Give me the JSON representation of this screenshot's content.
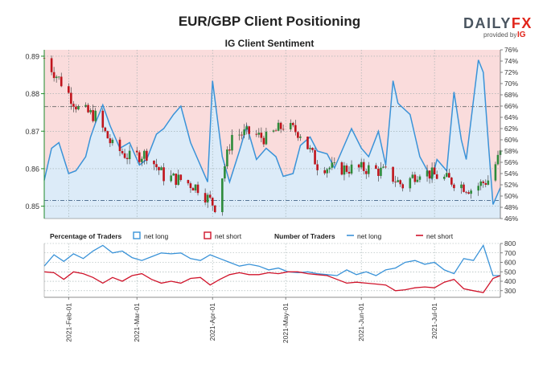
{
  "page_title": "EUR/GBP Client Positioning",
  "subtitle": "IG Client Sentiment",
  "brand": {
    "name": "DAILYFX",
    "name_dark": "DAILY",
    "name_red": "FX",
    "provided_by": "provided by",
    "ig": "IG",
    "colors": {
      "dark": "#4a5560",
      "red": "#e1251b"
    }
  },
  "colors": {
    "net_long": "#3a93d8",
    "net_short": "#d0142b",
    "net_long_fill": "#dcebf8",
    "net_short_fill": "#fadcdc",
    "up_candle": "#2e8b3a",
    "down_candle": "#c0141c",
    "left_axis": "#1e8a2a",
    "median_line": "#666666",
    "price_ref_line": "#446688"
  },
  "legend": {
    "pct_title": "Percentage of Traders",
    "count_title": "Number of Traders",
    "net_long": "net long",
    "net_short": "net short"
  },
  "chart_data": [
    {
      "type": "candlestick",
      "title": "EUR/GBP price",
      "ylim": [
        0.8467,
        0.8917
      ],
      "yticks": [
        "0.89",
        "0.88",
        "0.87",
        "0.86",
        "0.85"
      ],
      "ytick_values": [
        0.89,
        0.88,
        0.87,
        0.86,
        0.85
      ],
      "reference_line": 0.8515,
      "x_range": [
        "2021-01-22",
        "2021-07-28"
      ],
      "sampled_closes": [
        [
          "2021-01-22",
          0.8895
        ],
        [
          "2021-01-29",
          0.883
        ],
        [
          "2021-02-05",
          0.876
        ],
        [
          "2021-02-12",
          0.874
        ],
        [
          "2021-02-19",
          0.866
        ],
        [
          "2021-02-26",
          0.863
        ],
        [
          "2021-03-05",
          0.864
        ],
        [
          "2021-03-12",
          0.858
        ],
        [
          "2021-03-19",
          0.857
        ],
        [
          "2021-03-26",
          0.855
        ],
        [
          "2021-04-02",
          0.85
        ],
        [
          "2021-04-09",
          0.869
        ],
        [
          "2021-04-16",
          0.8695
        ],
        [
          "2021-04-23",
          0.868
        ],
        [
          "2021-04-30",
          0.8715
        ],
        [
          "2021-05-07",
          0.8695
        ],
        [
          "2021-05-14",
          0.861
        ],
        [
          "2021-05-21",
          0.86
        ],
        [
          "2021-05-28",
          0.86
        ],
        [
          "2021-06-04",
          0.86
        ],
        [
          "2021-06-11",
          0.859
        ],
        [
          "2021-06-18",
          0.8555
        ],
        [
          "2021-06-25",
          0.8595
        ],
        [
          "2021-07-02",
          0.858
        ],
        [
          "2021-07-09",
          0.8565
        ],
        [
          "2021-07-16",
          0.8545
        ],
        [
          "2021-07-23",
          0.857
        ],
        [
          "2021-07-28",
          0.864
        ]
      ]
    },
    {
      "type": "area",
      "title": "IG Client Sentiment",
      "ylabel": "Percentage of Traders",
      "ylim": [
        46,
        76
      ],
      "yticks": [
        "76%",
        "74%",
        "72%",
        "70%",
        "68%",
        "66%",
        "64%",
        "62%",
        "60%",
        "58%",
        "56%",
        "54%",
        "52%",
        "50%",
        "48%",
        "46%"
      ],
      "ytick_values": [
        76,
        74,
        72,
        70,
        68,
        66,
        64,
        62,
        60,
        58,
        56,
        54,
        52,
        50,
        48,
        46
      ],
      "median_line": 65.9,
      "series": [
        {
          "name": "net long",
          "points": [
            [
              "2021-01-22",
              52.8
            ],
            [
              "2021-01-25",
              58.5
            ],
            [
              "2021-01-28",
              59.5
            ],
            [
              "2021-02-01",
              54.0
            ],
            [
              "2021-02-04",
              54.5
            ],
            [
              "2021-02-08",
              57.0
            ],
            [
              "2021-02-10",
              60.5
            ],
            [
              "2021-02-12",
              63.0
            ],
            [
              "2021-02-15",
              66.2
            ],
            [
              "2021-02-18",
              62.5
            ],
            [
              "2021-02-22",
              58.5
            ],
            [
              "2021-02-26",
              59.5
            ],
            [
              "2021-03-02",
              55.5
            ],
            [
              "2021-03-05",
              56.5
            ],
            [
              "2021-03-09",
              61.0
            ],
            [
              "2021-03-12",
              62.0
            ],
            [
              "2021-03-16",
              64.5
            ],
            [
              "2021-03-19",
              66.0
            ],
            [
              "2021-03-23",
              59.5
            ],
            [
              "2021-03-26",
              56.5
            ],
            [
              "2021-03-30",
              52.5
            ],
            [
              "2021-04-01",
              70.5
            ],
            [
              "2021-04-05",
              57.0
            ],
            [
              "2021-04-08",
              52.5
            ],
            [
              "2021-04-12",
              58.0
            ],
            [
              "2021-04-15",
              62.5
            ],
            [
              "2021-04-19",
              56.5
            ],
            [
              "2021-04-23",
              58.5
            ],
            [
              "2021-04-27",
              57.0
            ],
            [
              "2021-04-30",
              53.5
            ],
            [
              "2021-05-04",
              54.0
            ],
            [
              "2021-05-07",
              59.0
            ],
            [
              "2021-05-11",
              60.5
            ],
            [
              "2021-05-14",
              58.0
            ],
            [
              "2021-05-18",
              57.5
            ],
            [
              "2021-05-21",
              55.0
            ],
            [
              "2021-05-25",
              59.0
            ],
            [
              "2021-05-28",
              62.0
            ],
            [
              "2021-06-01",
              58.5
            ],
            [
              "2021-06-04",
              57.0
            ],
            [
              "2021-06-08",
              61.5
            ],
            [
              "2021-06-11",
              55.5
            ],
            [
              "2021-06-14",
              70.5
            ],
            [
              "2021-06-16",
              66.5
            ],
            [
              "2021-06-21",
              64.5
            ],
            [
              "2021-06-25",
              57.0
            ],
            [
              "2021-06-30",
              53.0
            ],
            [
              "2021-07-02",
              56.5
            ],
            [
              "2021-07-06",
              54.5
            ],
            [
              "2021-07-09",
              68.5
            ],
            [
              "2021-07-12",
              60.0
            ],
            [
              "2021-07-14",
              56.5
            ],
            [
              "2021-07-19",
              74.2
            ],
            [
              "2021-07-21",
              72.0
            ],
            [
              "2021-07-23",
              60.0
            ],
            [
              "2021-07-25",
              48.5
            ],
            [
              "2021-07-28",
              51.5
            ]
          ]
        },
        {
          "name": "net short",
          "points_note": ""
        }
      ]
    },
    {
      "type": "line",
      "title": "Number of Traders",
      "ylim": [
        230,
        800
      ],
      "yticks": [
        "800",
        "700",
        "600",
        "500",
        "400",
        "300"
      ],
      "ytick_values": [
        800,
        700,
        600,
        500,
        400,
        300
      ],
      "xticks": [
        "2021-Feb-01",
        "2021-Mar-01",
        "2021-Apr-01",
        "2021-May-01",
        "2021-Jun-01",
        "2021-Jul-01"
      ],
      "xtick_dates": [
        "2021-02-01",
        "2021-03-01",
        "2021-04-01",
        "2021-05-01",
        "2021-06-01",
        "2021-07-01"
      ],
      "series": [
        {
          "name": "net long",
          "points": [
            [
              "2021-01-22",
              560
            ],
            [
              "2021-01-26",
              680
            ],
            [
              "2021-01-30",
              610
            ],
            [
              "2021-02-03",
              690
            ],
            [
              "2021-02-07",
              640
            ],
            [
              "2021-02-11",
              720
            ],
            [
              "2021-02-15",
              780
            ],
            [
              "2021-02-19",
              700
            ],
            [
              "2021-02-23",
              720
            ],
            [
              "2021-02-27",
              650
            ],
            [
              "2021-03-03",
              620
            ],
            [
              "2021-03-07",
              660
            ],
            [
              "2021-03-11",
              700
            ],
            [
              "2021-03-15",
              690
            ],
            [
              "2021-03-19",
              700
            ],
            [
              "2021-03-23",
              640
            ],
            [
              "2021-03-27",
              620
            ],
            [
              "2021-03-31",
              680
            ],
            [
              "2021-04-04",
              640
            ],
            [
              "2021-04-08",
              600
            ],
            [
              "2021-04-12",
              560
            ],
            [
              "2021-04-16",
              580
            ],
            [
              "2021-04-20",
              560
            ],
            [
              "2021-04-24",
              520
            ],
            [
              "2021-04-28",
              540
            ],
            [
              "2021-05-02",
              500
            ],
            [
              "2021-05-06",
              490
            ],
            [
              "2021-05-10",
              500
            ],
            [
              "2021-05-14",
              480
            ],
            [
              "2021-05-18",
              470
            ],
            [
              "2021-05-22",
              460
            ],
            [
              "2021-05-26",
              520
            ],
            [
              "2021-05-30",
              470
            ],
            [
              "2021-06-03",
              500
            ],
            [
              "2021-06-07",
              460
            ],
            [
              "2021-06-11",
              520
            ],
            [
              "2021-06-15",
              540
            ],
            [
              "2021-06-19",
              600
            ],
            [
              "2021-06-23",
              620
            ],
            [
              "2021-06-27",
              580
            ],
            [
              "2021-07-01",
              600
            ],
            [
              "2021-07-05",
              520
            ],
            [
              "2021-07-09",
              480
            ],
            [
              "2021-07-13",
              640
            ],
            [
              "2021-07-17",
              620
            ],
            [
              "2021-07-21",
              780
            ],
            [
              "2021-07-25",
              460
            ],
            [
              "2021-07-28",
              460
            ]
          ]
        },
        {
          "name": "net short",
          "points": [
            [
              "2021-01-22",
              500
            ],
            [
              "2021-01-26",
              490
            ],
            [
              "2021-01-30",
              420
            ],
            [
              "2021-02-03",
              500
            ],
            [
              "2021-02-07",
              480
            ],
            [
              "2021-02-11",
              440
            ],
            [
              "2021-02-15",
              380
            ],
            [
              "2021-02-19",
              440
            ],
            [
              "2021-02-23",
              400
            ],
            [
              "2021-02-27",
              460
            ],
            [
              "2021-03-03",
              480
            ],
            [
              "2021-03-07",
              420
            ],
            [
              "2021-03-11",
              380
            ],
            [
              "2021-03-15",
              400
            ],
            [
              "2021-03-19",
              380
            ],
            [
              "2021-03-23",
              430
            ],
            [
              "2021-03-27",
              440
            ],
            [
              "2021-03-31",
              360
            ],
            [
              "2021-04-04",
              420
            ],
            [
              "2021-04-08",
              470
            ],
            [
              "2021-04-12",
              490
            ],
            [
              "2021-04-16",
              470
            ],
            [
              "2021-04-20",
              470
            ],
            [
              "2021-04-24",
              490
            ],
            [
              "2021-04-28",
              480
            ],
            [
              "2021-05-02",
              500
            ],
            [
              "2021-05-06",
              500
            ],
            [
              "2021-05-10",
              480
            ],
            [
              "2021-05-14",
              470
            ],
            [
              "2021-05-18",
              460
            ],
            [
              "2021-05-22",
              420
            ],
            [
              "2021-05-26",
              380
            ],
            [
              "2021-05-30",
              390
            ],
            [
              "2021-06-03",
              380
            ],
            [
              "2021-06-07",
              370
            ],
            [
              "2021-06-11",
              360
            ],
            [
              "2021-06-15",
              300
            ],
            [
              "2021-06-19",
              310
            ],
            [
              "2021-06-23",
              330
            ],
            [
              "2021-06-27",
              340
            ],
            [
              "2021-07-01",
              330
            ],
            [
              "2021-07-05",
              390
            ],
            [
              "2021-07-09",
              420
            ],
            [
              "2021-07-13",
              320
            ],
            [
              "2021-07-17",
              300
            ],
            [
              "2021-07-21",
              280
            ],
            [
              "2021-07-25",
              430
            ],
            [
              "2021-07-28",
              460
            ]
          ]
        }
      ]
    }
  ]
}
